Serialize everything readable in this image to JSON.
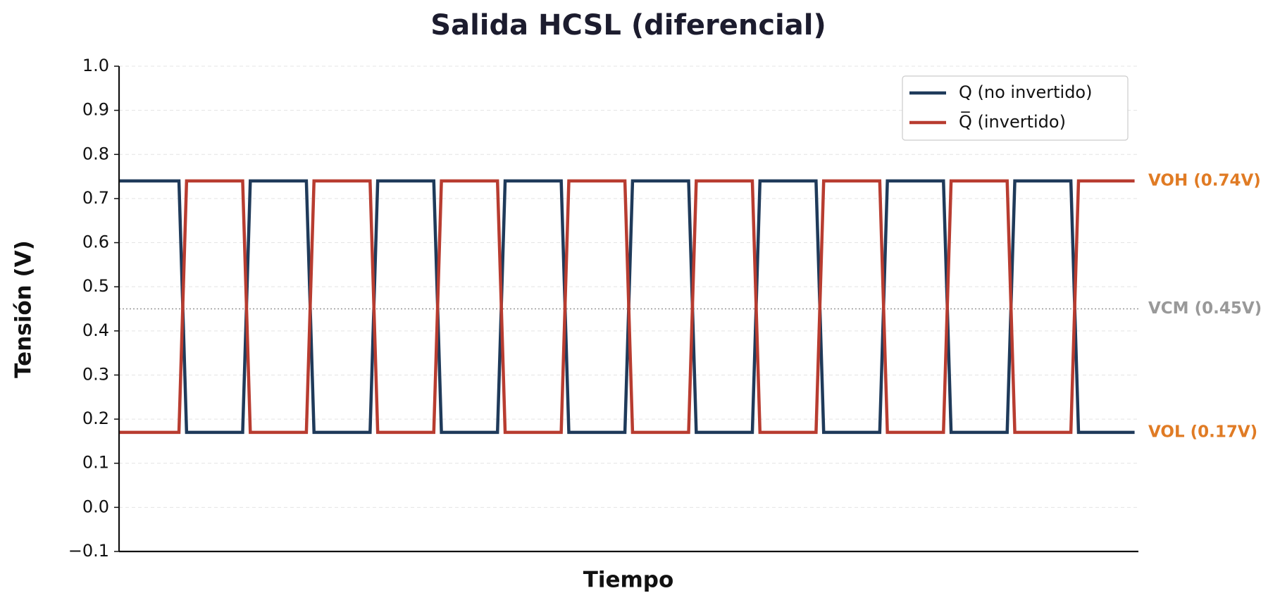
{
  "chart_data": {
    "type": "line",
    "title": "Salida HCSL (diferencial)",
    "x_label": "Tiempo",
    "y_label": "Tensión (V)",
    "x": [
      0,
      0.47,
      0.53,
      0.97,
      1.03,
      1.47,
      1.53,
      1.97,
      2.03,
      2.47,
      2.53,
      2.97,
      3.03,
      3.47,
      3.53,
      3.97,
      4.03,
      4.47,
      4.53,
      4.97,
      5.03,
      5.47,
      5.53,
      5.97,
      6.03,
      6.47,
      6.53,
      6.97,
      7.03,
      7.47,
      7.53,
      7.97
    ],
    "xlim": [
      0,
      8
    ],
    "series": [
      {
        "name": "Q (no invertido)",
        "color": "#1f3a5a",
        "values": [
          0.74,
          0.74,
          0.17,
          0.17,
          0.74,
          0.74,
          0.17,
          0.17,
          0.74,
          0.74,
          0.17,
          0.17,
          0.74,
          0.74,
          0.17,
          0.17,
          0.74,
          0.74,
          0.17,
          0.17,
          0.74,
          0.74,
          0.17,
          0.17,
          0.74,
          0.74,
          0.17,
          0.17,
          0.74,
          0.74,
          0.17,
          0.17
        ]
      },
      {
        "name": "Q̅ (invertido)",
        "color": "#b83c30",
        "values": [
          0.17,
          0.17,
          0.74,
          0.74,
          0.17,
          0.17,
          0.74,
          0.74,
          0.17,
          0.17,
          0.74,
          0.74,
          0.17,
          0.17,
          0.74,
          0.74,
          0.17,
          0.17,
          0.74,
          0.74,
          0.17,
          0.17,
          0.74,
          0.74,
          0.17,
          0.17,
          0.74,
          0.74,
          0.17,
          0.17,
          0.74,
          0.74
        ]
      }
    ],
    "ylim": [
      -0.1,
      1.0
    ],
    "yticks": [
      {
        "value": -0.1,
        "label": "−0.1"
      },
      {
        "value": 0,
        "label": "0.0"
      },
      0.1,
      0.2,
      0.3,
      0.4,
      0.5,
      0.6,
      0.7,
      0.8,
      0.9,
      {
        "value": 1.0,
        "label": "1.0"
      }
    ],
    "grid": true,
    "legend": "upper right",
    "annotations": [
      {
        "y": 0.74,
        "text": "VOH (0.74V)",
        "color": "#e07b24",
        "line": false
      },
      {
        "y": 0.45,
        "text": "VCM (0.45V)",
        "color": "#999999",
        "line": true
      },
      {
        "y": 0.17,
        "text": "VOL (0.17V)",
        "color": "#e07b24",
        "line": false
      }
    ]
  }
}
